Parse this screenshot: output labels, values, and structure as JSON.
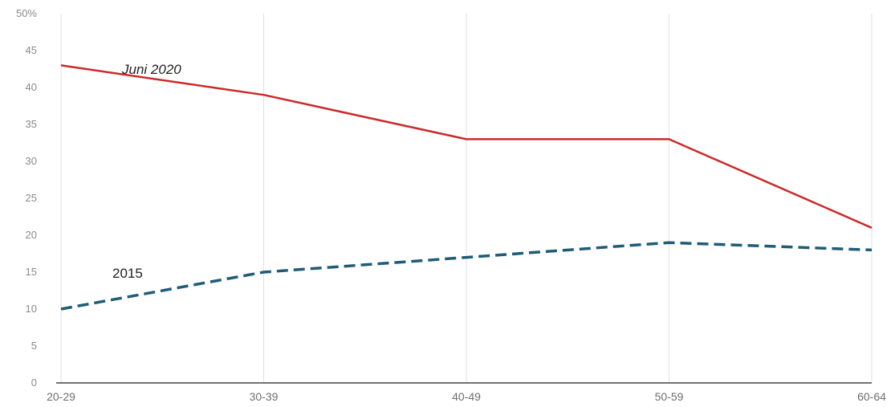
{
  "chart_data": {
    "type": "line",
    "categories": [
      "20-29",
      "30-39",
      "40-49",
      "50-59",
      "60-64"
    ],
    "y_ticks": [
      "0",
      "5",
      "10",
      "15",
      "20",
      "25",
      "30",
      "35",
      "40",
      "45",
      "50%"
    ],
    "ylim": [
      0,
      50
    ],
    "grid": "vertical",
    "series": [
      {
        "name": "Juni 2020",
        "values": [
          43,
          39,
          33,
          33,
          21
        ],
        "color": "#cc2a2a",
        "style": "solid"
      },
      {
        "name": "2015",
        "values": [
          10,
          15,
          17,
          19,
          18
        ],
        "color": "#1f5c78",
        "style": "dashed"
      }
    ]
  }
}
